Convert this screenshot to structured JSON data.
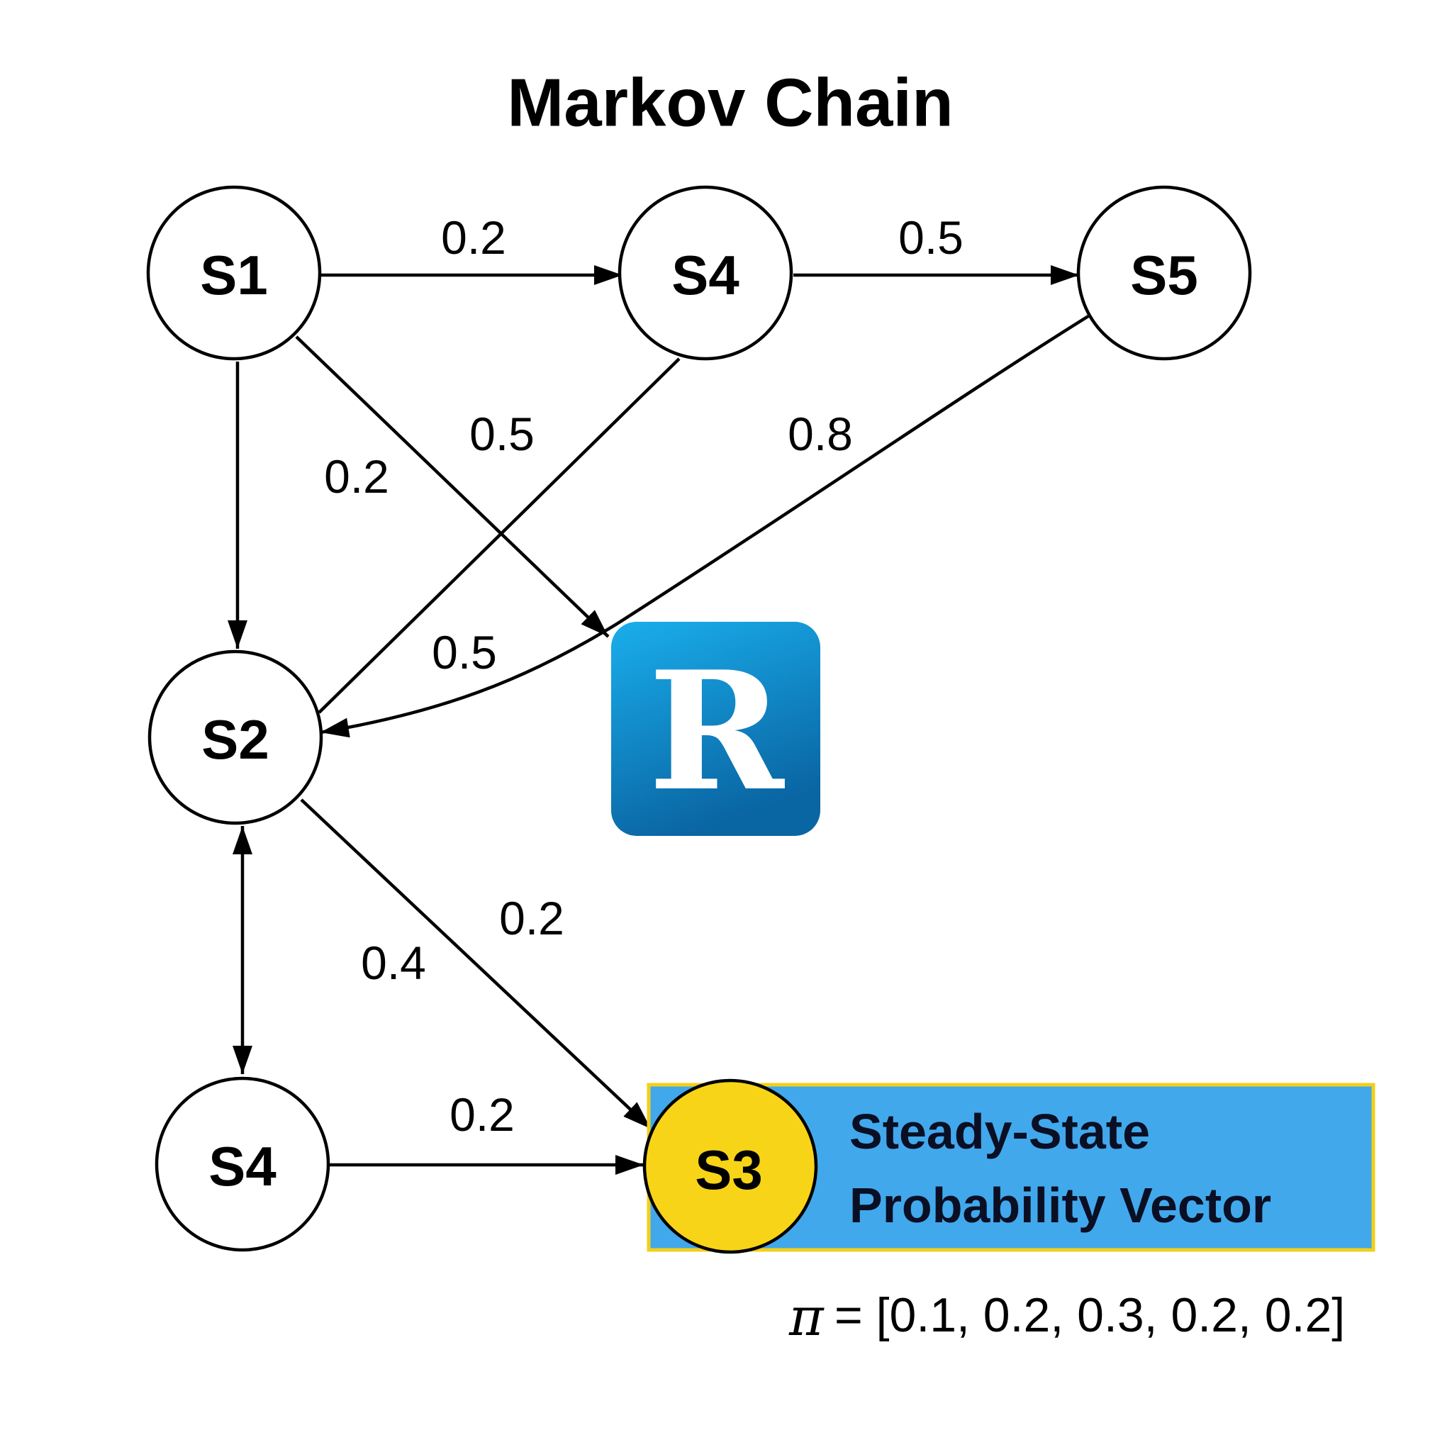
{
  "title": "Markov Chain",
  "colors": {
    "node_fill": "#ffffff",
    "highlight_node": "#f7d417",
    "highlight_box": "#42a8ec",
    "highlight_border": "#f2cf1a",
    "logo_top": "#1aaeec",
    "logo_bottom": "#0a65a3"
  },
  "nodes": [
    {
      "id": "S1",
      "label": "S1"
    },
    {
      "id": "S4_top",
      "label": "S4"
    },
    {
      "id": "S5",
      "label": "S5"
    },
    {
      "id": "S2",
      "label": "S2"
    },
    {
      "id": "S4_bottom",
      "label": "S4"
    },
    {
      "id": "S3",
      "label": "S3",
      "highlighted": true
    }
  ],
  "edges": [
    {
      "from": "S1",
      "to": "S4_top",
      "probability": "0.2"
    },
    {
      "from": "S4_top",
      "to": "S5",
      "probability": "0.5"
    },
    {
      "from": "S1",
      "to": "S2",
      "probability": "0.2"
    },
    {
      "from": "S1",
      "to": "logo",
      "probability": "0.5"
    },
    {
      "from": "S4_top",
      "to": "S2",
      "probability": "0.5"
    },
    {
      "from": "S5",
      "to": "S2",
      "probability": "0.8"
    },
    {
      "from": "S2",
      "to": "S3",
      "probability": "0.2"
    },
    {
      "from": "S2",
      "to": "S4_bottom",
      "probability": "0.4",
      "bidirectional": true
    },
    {
      "from": "S4_bottom",
      "to": "S3",
      "probability": "0.2"
    }
  ],
  "logo": {
    "letter": "R",
    "icon": "r-logo-icon"
  },
  "steady_state": {
    "heading_line1": "Steady-State",
    "heading_line2": "Probability Vector",
    "symbol": "π",
    "vector": "= [0.1, 0.2, 0.3, 0.2, 0.2]"
  }
}
